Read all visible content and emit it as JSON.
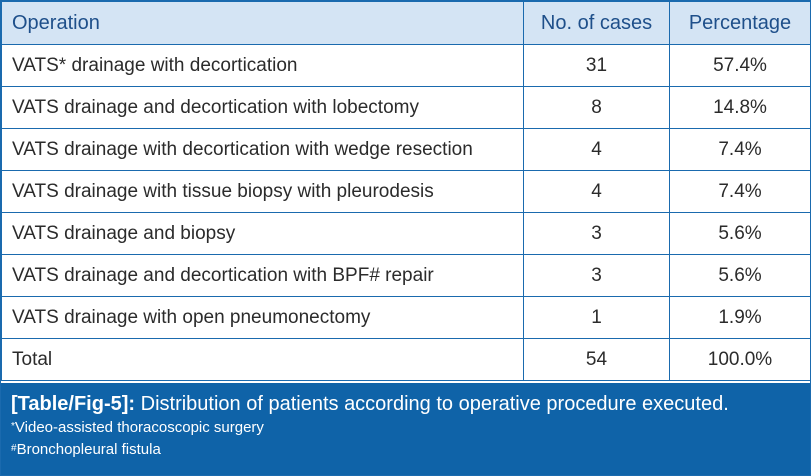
{
  "table": {
    "headers": {
      "operation": "Operation",
      "cases": "No. of cases",
      "percentage": "Percentage"
    },
    "rows": [
      {
        "operation": "VATS* drainage with decortication",
        "cases": "31",
        "percentage": "57.4%"
      },
      {
        "operation": "VATS drainage and decortication with lobectomy",
        "cases": "8",
        "percentage": "14.8%"
      },
      {
        "operation": "VATS drainage with decortication with wedge resection",
        "cases": "4",
        "percentage": "7.4%"
      },
      {
        "operation": "VATS drainage with tissue biopsy with pleurodesis",
        "cases": "4",
        "percentage": "7.4%"
      },
      {
        "operation": "VATS drainage and biopsy",
        "cases": "3",
        "percentage": "5.6%"
      },
      {
        "operation": "VATS drainage and decortication with BPF# repair",
        "cases": "3",
        "percentage": "5.6%"
      },
      {
        "operation": "VATS drainage with open pneumonectomy",
        "cases": "1",
        "percentage": "1.9%"
      },
      {
        "operation": "Total",
        "cases": "54",
        "percentage": "100.0%"
      }
    ]
  },
  "caption": {
    "label": "[Table/Fig-5]:",
    "text": "Distribution of patients according to operative procedure executed.",
    "footnotes": [
      {
        "mark": "*",
        "text": "Video-assisted thoracoscopic surgery"
      },
      {
        "mark": "#",
        "text": "Bronchopleural fistula"
      }
    ]
  }
}
